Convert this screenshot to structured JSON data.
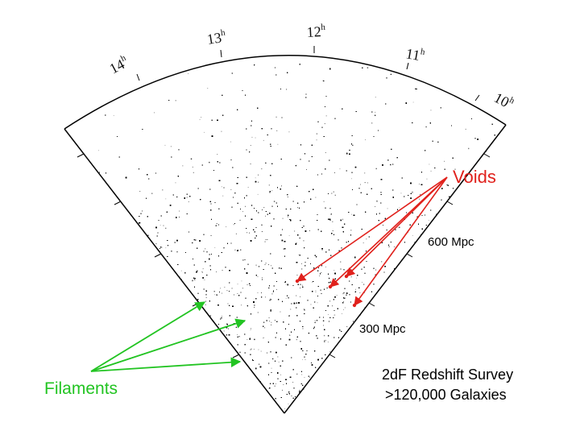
{
  "hours": [
    {
      "value": "14",
      "sup": "h"
    },
    {
      "value": "13",
      "sup": "h"
    },
    {
      "value": "12",
      "sup": "h"
    },
    {
      "value": "11",
      "sup": "h"
    },
    {
      "value": "10",
      "sup": "h"
    }
  ],
  "annotations": {
    "voids": "Voids",
    "filaments": "Filaments",
    "distance_600": "600 Mpc",
    "distance_300": "300 Mpc",
    "survey_line1": "2dF Redshift Survey",
    "survey_line2": ">120,000 Galaxies"
  },
  "colors": {
    "voids": "#e0211c",
    "filaments": "#22c422",
    "galaxies": "#000000",
    "frame": "#000000"
  }
}
